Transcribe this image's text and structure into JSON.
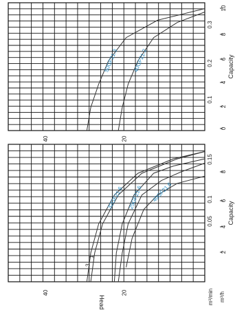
{
  "chart_data": [
    {
      "type": "line",
      "xlabel": "Capacity",
      "ylabel": "Head",
      "units": {
        "primary": "m³/min",
        "secondary": "m³/h"
      },
      "x_ticks_min": [
        "0.05",
        "0.1",
        "0.15"
      ],
      "x_ticks_h": [
        "2",
        "4",
        "6",
        "8"
      ],
      "y_ticks": [
        "20",
        "40"
      ],
      "xlim": [
        0,
        9.5
      ],
      "ylim": [
        0,
        50
      ],
      "grid": true,
      "series": [
        {
          "name": "32GF21.6",
          "marker": "3",
          "x": [
            0,
            2,
            4,
            6,
            7.5,
            8.5,
            9.0
          ],
          "y": [
            30,
            29,
            27,
            23,
            17,
            8,
            0
          ]
        },
        {
          "name": "",
          "marker": "1",
          "x": [
            0,
            2,
            4,
            6,
            7.5,
            8.5,
            9.0
          ],
          "y": [
            29,
            28,
            26,
            22,
            16,
            7,
            0
          ]
        },
        {
          "name": "25GF21.6",
          "x": [
            0,
            2,
            4,
            6,
            7.5,
            8.0,
            8.5
          ],
          "y": [
            23,
            22.5,
            21,
            18,
            13,
            8,
            0
          ]
        },
        {
          "name": "",
          "x": [
            0,
            2,
            4,
            6,
            7.0,
            7.6,
            8.2
          ],
          "y": [
            22,
            21,
            19.5,
            16,
            11,
            6,
            0
          ]
        },
        {
          "name": "40GF21.6",
          "x": [
            1,
            3,
            5,
            6,
            6.8,
            7.3
          ],
          "y": [
            20,
            18.5,
            15.5,
            12,
            7,
            0
          ]
        }
      ]
    },
    {
      "type": "line",
      "xlabel": "Capacity",
      "ylabel": "",
      "x_ticks_min": [
        "0.1",
        "0.2",
        "0.3"
      ],
      "x_ticks_h": [
        "0",
        "2",
        "4",
        "6",
        "8",
        "10"
      ],
      "y_ticks": [
        "20",
        "40"
      ],
      "xlim": [
        0,
        11
      ],
      "ylim": [
        0,
        50
      ],
      "grid": true,
      "series": [
        {
          "name": "50GF21.3",
          "x": [
            0,
            2,
            4,
            6,
            8,
            9.5,
            10.5
          ],
          "y": [
            30,
            29,
            27,
            24.5,
            20,
            12,
            0
          ]
        },
        {
          "name": "40GF21.2",
          "x": [
            0,
            2,
            4,
            6,
            8,
            9.3,
            10.2
          ],
          "y": [
            22,
            21,
            19.5,
            17,
            13,
            7,
            0
          ]
        }
      ]
    }
  ]
}
